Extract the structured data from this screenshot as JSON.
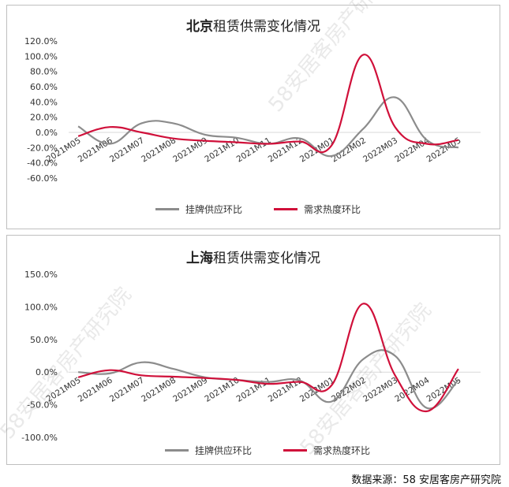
{
  "source_label": "数据来源：58 安居客房产研究院",
  "watermark_text": "58安居客房产研究院",
  "colors": {
    "supply": "#8c8c8c",
    "demand": "#d0103a",
    "grid": "#d9d9d9"
  },
  "chart_data": [
    {
      "type": "line",
      "title_city": "北京",
      "title_rest": "租赁供需变化情况",
      "categories": [
        "2021M05",
        "2021M06",
        "2021M07",
        "2021M08",
        "2021M09",
        "2021M10",
        "2021M11",
        "2021M12",
        "2022M01",
        "2022M02",
        "2022M03",
        "2022M04",
        "2022M05"
      ],
      "ylim": [
        -60,
        120
      ],
      "yticks": [
        120,
        100,
        80,
        60,
        40,
        20,
        0,
        -20,
        -40,
        -60
      ],
      "ytick_labels": [
        "120.0%",
        "100.0%",
        "80.0%",
        "60.0%",
        "40.0%",
        "20.0%",
        "0.0%",
        "-20.0%",
        "-40.0%",
        "-60.0%"
      ],
      "series": [
        {
          "name": "挂牌供应环比",
          "color": "#8c8c8c",
          "values": [
            8,
            -15,
            12,
            12,
            -3,
            -7,
            -15,
            -8,
            -31,
            5,
            46,
            -10,
            -20
          ]
        },
        {
          "name": "需求热度环比",
          "color": "#d0103a",
          "values": [
            -5,
            7,
            0,
            -8,
            -11,
            -13,
            -15,
            -12,
            -17,
            102,
            7,
            -15,
            -10
          ]
        }
      ]
    },
    {
      "type": "line",
      "title_city": "上海",
      "title_rest": "租赁供需变化情况",
      "categories": [
        "2021M05",
        "2021M06",
        "2021M07",
        "2021M08",
        "2021M09",
        "2021M10",
        "2021M11",
        "2021M12",
        "2022M01",
        "2022M02",
        "2022M03",
        "2022M04",
        "2022M05"
      ],
      "ylim": [
        -100,
        150
      ],
      "yticks": [
        150,
        100,
        50,
        0,
        -50,
        -100
      ],
      "ytick_labels": [
        "150.0%",
        "100.0%",
        "50.0%",
        "0.0%",
        "-50.0%",
        "-100.0%"
      ],
      "series": [
        {
          "name": "挂牌供应环比",
          "color": "#8c8c8c",
          "values": [
            0,
            -2,
            15,
            5,
            -8,
            -12,
            -15,
            -13,
            -45,
            20,
            25,
            -55,
            -12
          ]
        },
        {
          "name": "需求热度环比",
          "color": "#d0103a",
          "values": [
            -8,
            3,
            -5,
            -7,
            -9,
            -12,
            -18,
            -15,
            -20,
            105,
            -5,
            -60,
            5
          ]
        }
      ]
    }
  ]
}
